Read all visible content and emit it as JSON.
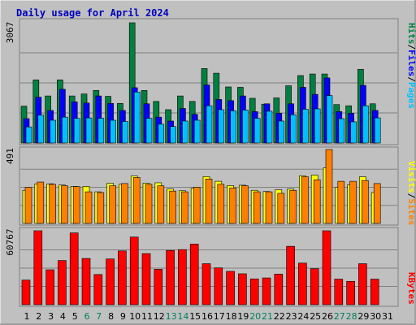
{
  "title": "Daily usage for April 2024",
  "colors": {
    "background": "#c0c0c0",
    "title": "#0000c0",
    "hits": "#008040",
    "files": "#0000ff",
    "pages": "#00c0ff",
    "visits": "#ffff00",
    "sites": "#ff8000",
    "kbytes": "#ff0000",
    "weekend_label": "#00805c",
    "weekday_label": "#000000"
  },
  "chart_data": [
    {
      "type": "bar",
      "panel": "top",
      "ymax_label": "3067",
      "ylim": [
        0,
        3067
      ],
      "legend": [
        "Pages",
        "Files",
        "Hits"
      ],
      "legend_sep": "/",
      "categories": [
        "1",
        "2",
        "3",
        "4",
        "5",
        "6",
        "7",
        "8",
        "9",
        "10",
        "11",
        "12",
        "13",
        "14",
        "15",
        "16",
        "17",
        "18",
        "19",
        "20",
        "21",
        "22",
        "23",
        "24",
        "25",
        "26",
        "27",
        "28",
        "29",
        "30",
        "31"
      ],
      "weekend": [
        6,
        7,
        13,
        14,
        20,
        21,
        27,
        28
      ],
      "series": [
        {
          "name": "Hits",
          "values": [
            940,
            1610,
            1200,
            1610,
            1200,
            1250,
            1340,
            1190,
            1010,
            3067,
            1340,
            1060,
            850,
            1200,
            1060,
            1900,
            1780,
            1430,
            1420,
            1140,
            990,
            1150,
            1460,
            1720,
            1760,
            1760,
            980,
            950,
            1880,
            1000,
            0
          ]
        },
        {
          "name": "Files",
          "values": [
            620,
            1170,
            830,
            1370,
            1050,
            1020,
            1200,
            1010,
            830,
            1410,
            1000,
            660,
            560,
            880,
            730,
            1480,
            1110,
            1080,
            1200,
            800,
            1000,
            760,
            1000,
            1420,
            1240,
            1660,
            800,
            760,
            1470,
            830,
            0
          ]
        },
        {
          "name": "Pages",
          "values": [
            410,
            710,
            580,
            660,
            630,
            640,
            630,
            580,
            550,
            1300,
            630,
            480,
            420,
            560,
            580,
            950,
            850,
            820,
            840,
            630,
            810,
            560,
            720,
            860,
            870,
            1210,
            620,
            540,
            950,
            640,
            0
          ]
        }
      ]
    },
    {
      "type": "bar",
      "panel": "middle",
      "ymax_label": "491",
      "ylim": [
        0,
        491
      ],
      "legend": [
        "Sites",
        "Visits"
      ],
      "legend_sep": "/",
      "categories": [
        "1",
        "2",
        "3",
        "4",
        "5",
        "6",
        "7",
        "8",
        "9",
        "10",
        "11",
        "12",
        "13",
        "14",
        "15",
        "16",
        "17",
        "18",
        "19",
        "20",
        "21",
        "22",
        "23",
        "24",
        "25",
        "26",
        "27",
        "28",
        "29",
        "30",
        "31"
      ],
      "series": [
        {
          "name": "Visits",
          "values": [
            220,
            263,
            263,
            255,
            246,
            246,
            210,
            267,
            260,
            315,
            268,
            270,
            229,
            217,
            233,
            311,
            280,
            252,
            254,
            220,
            212,
            224,
            228,
            316,
            321,
            369,
            240,
            257,
            310,
            205,
            0
          ]
        },
        {
          "name": "Sites",
          "values": [
            240,
            275,
            260,
            250,
            245,
            210,
            205,
            250,
            265,
            305,
            260,
            250,
            215,
            210,
            240,
            295,
            260,
            235,
            250,
            210,
            210,
            200,
            220,
            310,
            290,
            491,
            280,
            280,
            285,
            265,
            0
          ]
        }
      ]
    },
    {
      "type": "bar",
      "panel": "bottom",
      "ymax_label": "60767",
      "ylim": [
        0,
        60767
      ],
      "legend": [
        "KBytes"
      ],
      "categories": [
        "1",
        "2",
        "3",
        "4",
        "5",
        "6",
        "7",
        "8",
        "9",
        "10",
        "11",
        "12",
        "13",
        "14",
        "15",
        "16",
        "17",
        "18",
        "19",
        "20",
        "21",
        "22",
        "23",
        "24",
        "25",
        "26",
        "27",
        "28",
        "29",
        "30",
        "31"
      ],
      "series": [
        {
          "name": "KBytes",
          "values": [
            20200,
            60767,
            28700,
            36300,
            59000,
            38000,
            24800,
            37600,
            44200,
            55600,
            42000,
            29100,
            44600,
            45300,
            49800,
            33700,
            30300,
            27400,
            25400,
            21200,
            22000,
            25100,
            48000,
            34200,
            29600,
            60767,
            21000,
            19200,
            33700,
            21000,
            0
          ]
        }
      ]
    }
  ]
}
